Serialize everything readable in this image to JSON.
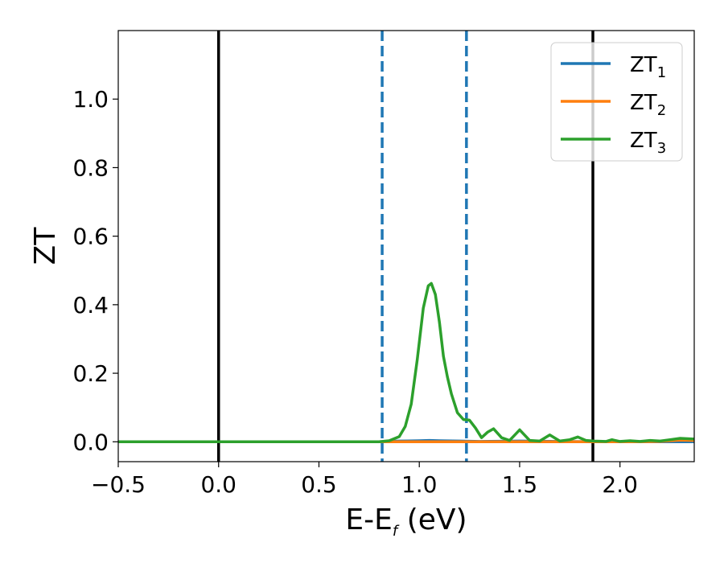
{
  "chart_data": {
    "type": "line",
    "xlabel_parts": [
      "E-E",
      "f",
      " (eV)"
    ],
    "ylabel": "ZT",
    "xlim": [
      -0.5,
      2.37
    ],
    "ylim": [
      -0.058,
      1.2
    ],
    "xticks": [
      -0.5,
      0.0,
      0.5,
      1.0,
      1.5,
      2.0
    ],
    "xtick_labels": [
      "−0.5",
      "0.0",
      "0.5",
      "1.0",
      "1.5",
      "2.0"
    ],
    "yticks": [
      0.0,
      0.2,
      0.4,
      0.6,
      0.8,
      1.0
    ],
    "ytick_labels": [
      "0.0",
      "0.2",
      "0.4",
      "0.6",
      "0.8",
      "1.0"
    ],
    "grid": false,
    "legend_position": "top-right",
    "reference_lines": [
      {
        "x": 0.0,
        "style": "solid",
        "color": "#000000"
      },
      {
        "x": 1.865,
        "style": "solid",
        "color": "#000000"
      },
      {
        "x": 0.815,
        "style": "dashed",
        "color": "#1f77b4"
      },
      {
        "x": 1.235,
        "style": "dashed",
        "color": "#1f77b4"
      }
    ],
    "series": [
      {
        "name": "ZT",
        "subscript": "1",
        "color": "#1f77b4",
        "x": [
          -0.5,
          0.0,
          0.5,
          0.8,
          0.9,
          1.0,
          1.05,
          1.1,
          1.2,
          1.3,
          1.5,
          1.7,
          1.9,
          2.1,
          2.37
        ],
        "y": [
          0.0,
          0.0,
          0.0,
          0.0,
          0.002,
          0.003,
          0.004,
          0.003,
          0.002,
          0.001,
          0.002,
          0.001,
          0.0,
          0.0,
          0.0
        ]
      },
      {
        "name": "ZT",
        "subscript": "2",
        "color": "#ff7f0e",
        "x": [
          -0.5,
          0.0,
          0.5,
          1.0,
          1.5,
          1.9,
          2.1,
          2.2,
          2.25,
          2.3,
          2.37
        ],
        "y": [
          0.0,
          0.0,
          0.0,
          0.0,
          0.0,
          0.0,
          0.0,
          0.001,
          0.003,
          0.005,
          0.004
        ]
      },
      {
        "name": "ZT",
        "subscript": "3",
        "color": "#2ca02c",
        "x": [
          -0.5,
          0.0,
          0.5,
          0.8,
          0.85,
          0.9,
          0.93,
          0.96,
          0.99,
          1.02,
          1.045,
          1.06,
          1.08,
          1.1,
          1.12,
          1.14,
          1.16,
          1.19,
          1.22,
          1.25,
          1.28,
          1.31,
          1.34,
          1.37,
          1.41,
          1.45,
          1.5,
          1.55,
          1.6,
          1.65,
          1.7,
          1.75,
          1.79,
          1.83,
          1.87,
          1.93,
          1.96,
          2.0,
          2.05,
          2.1,
          2.15,
          2.2,
          2.25,
          2.3,
          2.37
        ],
        "y": [
          0.0,
          0.0,
          0.0,
          0.0,
          0.003,
          0.015,
          0.045,
          0.11,
          0.24,
          0.39,
          0.455,
          0.462,
          0.43,
          0.35,
          0.25,
          0.19,
          0.14,
          0.085,
          0.065,
          0.063,
          0.04,
          0.012,
          0.028,
          0.038,
          0.012,
          0.004,
          0.035,
          0.004,
          0.002,
          0.02,
          0.002,
          0.006,
          0.014,
          0.004,
          0.002,
          0.001,
          0.006,
          0.001,
          0.003,
          0.001,
          0.004,
          0.002,
          0.006,
          0.01,
          0.008
        ]
      }
    ]
  }
}
